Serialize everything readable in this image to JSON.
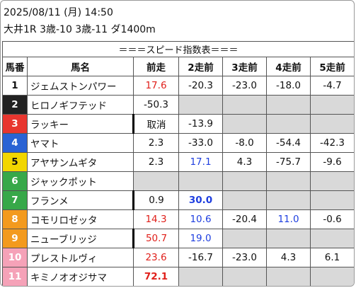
{
  "header": {
    "date": "2025/08/11 (月) 14:50",
    "race": "大井1R 3歳-10 3歳-11 ダ1400m"
  },
  "table": {
    "title": "＝＝＝スピード指数表＝＝＝",
    "columns": [
      "馬番",
      "馬名",
      "前走",
      "2走前",
      "3走前",
      "4走前",
      "5走前"
    ],
    "rows": [
      [
        "1",
        "ジェムストンパワー",
        "17.6",
        "-20.3",
        "-23.0",
        "-18.0",
        "-4.7"
      ],
      [
        "2",
        "ヒロノギフテッド",
        "-50.3",
        null,
        null,
        null,
        null
      ],
      [
        "3",
        "ラッキー",
        "取消",
        "-13.9",
        null,
        null,
        null
      ],
      [
        "4",
        "ヤマト",
        "2.3",
        "-33.0",
        "-8.0",
        "-54.4",
        "-42.3"
      ],
      [
        "5",
        "アヤサンムギタ",
        "2.3",
        "17.1",
        "4.3",
        "-75.7",
        "-9.6"
      ],
      [
        "6",
        "ジャックポット",
        null,
        null,
        null,
        null,
        null
      ],
      [
        "7",
        "フランメ",
        "0.9",
        "30.0",
        null,
        null,
        null
      ],
      [
        "8",
        "コモリロゼッタ",
        "14.3",
        "10.6",
        "-20.4",
        "11.0",
        "-0.6"
      ],
      [
        "9",
        "ニューブリッジ",
        "50.7",
        "19.0",
        null,
        null,
        null
      ],
      [
        "10",
        "プレストルヴィ",
        "23.6",
        "-16.7",
        "-23.0",
        "4.3",
        "6.1"
      ],
      [
        "11",
        "キミノオオジサマ",
        "72.1",
        null,
        null,
        null,
        null
      ]
    ]
  }
}
